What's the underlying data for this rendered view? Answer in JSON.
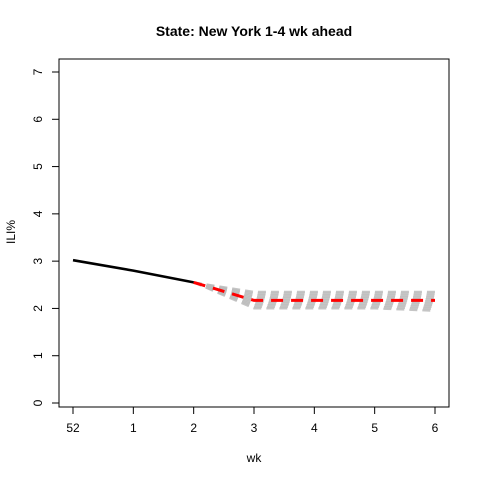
{
  "chart_data": {
    "type": "line",
    "title": "State: New York 1-4 wk ahead",
    "xlabel": "wk",
    "ylabel": "ILI%",
    "x_ticks": [
      "52",
      "1",
      "2",
      "3",
      "4",
      "5",
      "6"
    ],
    "y_ticks": [
      "0",
      "1",
      "2",
      "3",
      "4",
      "5",
      "6",
      "7"
    ],
    "ylim": [
      0,
      7
    ],
    "grid": false,
    "legend": "none",
    "series": [
      {
        "style": "solid",
        "color": "#000000",
        "x": [
          "52",
          "1",
          "2"
        ],
        "values": [
          3.02,
          2.8,
          2.55
        ]
      },
      {
        "style": "dashed",
        "color": "#ff0000",
        "x": [
          "2",
          "3",
          "4",
          "5",
          "6"
        ],
        "values": [
          2.55,
          2.17,
          2.17,
          2.17,
          2.17
        ]
      }
    ],
    "uncertainty": {
      "style": "dashed",
      "color": "#bbbbbb",
      "x": [
        "2",
        "3",
        "4",
        "5",
        "6"
      ],
      "lower": [
        2.55,
        2.0,
        2.0,
        2.0,
        1.95
      ],
      "upper": [
        2.55,
        2.35,
        2.35,
        2.35,
        2.35
      ]
    }
  }
}
